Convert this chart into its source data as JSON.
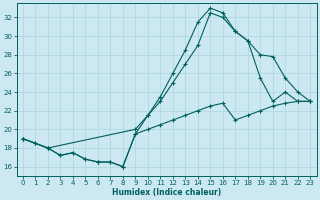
{
  "xlabel": "Humidex (Indice chaleur)",
  "bg_color": "#cce8f0",
  "line_color": "#006060",
  "grid_color": "#b0d8e0",
  "xlim": [
    -0.5,
    23.5
  ],
  "ylim": [
    15.0,
    33.5
  ],
  "yticks": [
    16,
    18,
    20,
    22,
    24,
    26,
    28,
    30,
    32
  ],
  "xticks": [
    0,
    1,
    2,
    3,
    4,
    5,
    6,
    7,
    8,
    9,
    10,
    11,
    12,
    13,
    14,
    15,
    16,
    17,
    18,
    19,
    20,
    21,
    22,
    23
  ],
  "line1_x": [
    0,
    1,
    2,
    3,
    4,
    5,
    6,
    7,
    8,
    9,
    10,
    11,
    12,
    13,
    14,
    15,
    16,
    17,
    18,
    19,
    20,
    21,
    22,
    23
  ],
  "line1_y": [
    19.0,
    18.5,
    18.0,
    17.2,
    17.5,
    16.8,
    16.5,
    16.5,
    16.0,
    19.5,
    20.0,
    20.5,
    21.0,
    21.5,
    22.0,
    22.5,
    22.8,
    21.0,
    21.5,
    22.0,
    22.5,
    22.8,
    23.0,
    23.0
  ],
  "line2_x": [
    0,
    2,
    9,
    10,
    11,
    12,
    13,
    14,
    15,
    16,
    17,
    18,
    19,
    20,
    21,
    22,
    23
  ],
  "line2_y": [
    19.0,
    18.0,
    20.0,
    21.5,
    23.0,
    25.0,
    27.0,
    29.0,
    32.5,
    32.0,
    30.5,
    29.5,
    28.0,
    27.8,
    25.5,
    24.0,
    23.0
  ],
  "line3_x": [
    0,
    1,
    2,
    3,
    4,
    5,
    6,
    7,
    8,
    9,
    10,
    11,
    12,
    13,
    14,
    15,
    16,
    17,
    18,
    19,
    20,
    21,
    22,
    23
  ],
  "line3_y": [
    19.0,
    18.5,
    18.0,
    17.2,
    17.5,
    16.8,
    16.5,
    16.5,
    16.0,
    19.5,
    21.5,
    23.5,
    26.0,
    28.5,
    31.5,
    33.0,
    32.5,
    30.5,
    29.5,
    25.5,
    23.0,
    24.0,
    23.0,
    23.0
  ]
}
